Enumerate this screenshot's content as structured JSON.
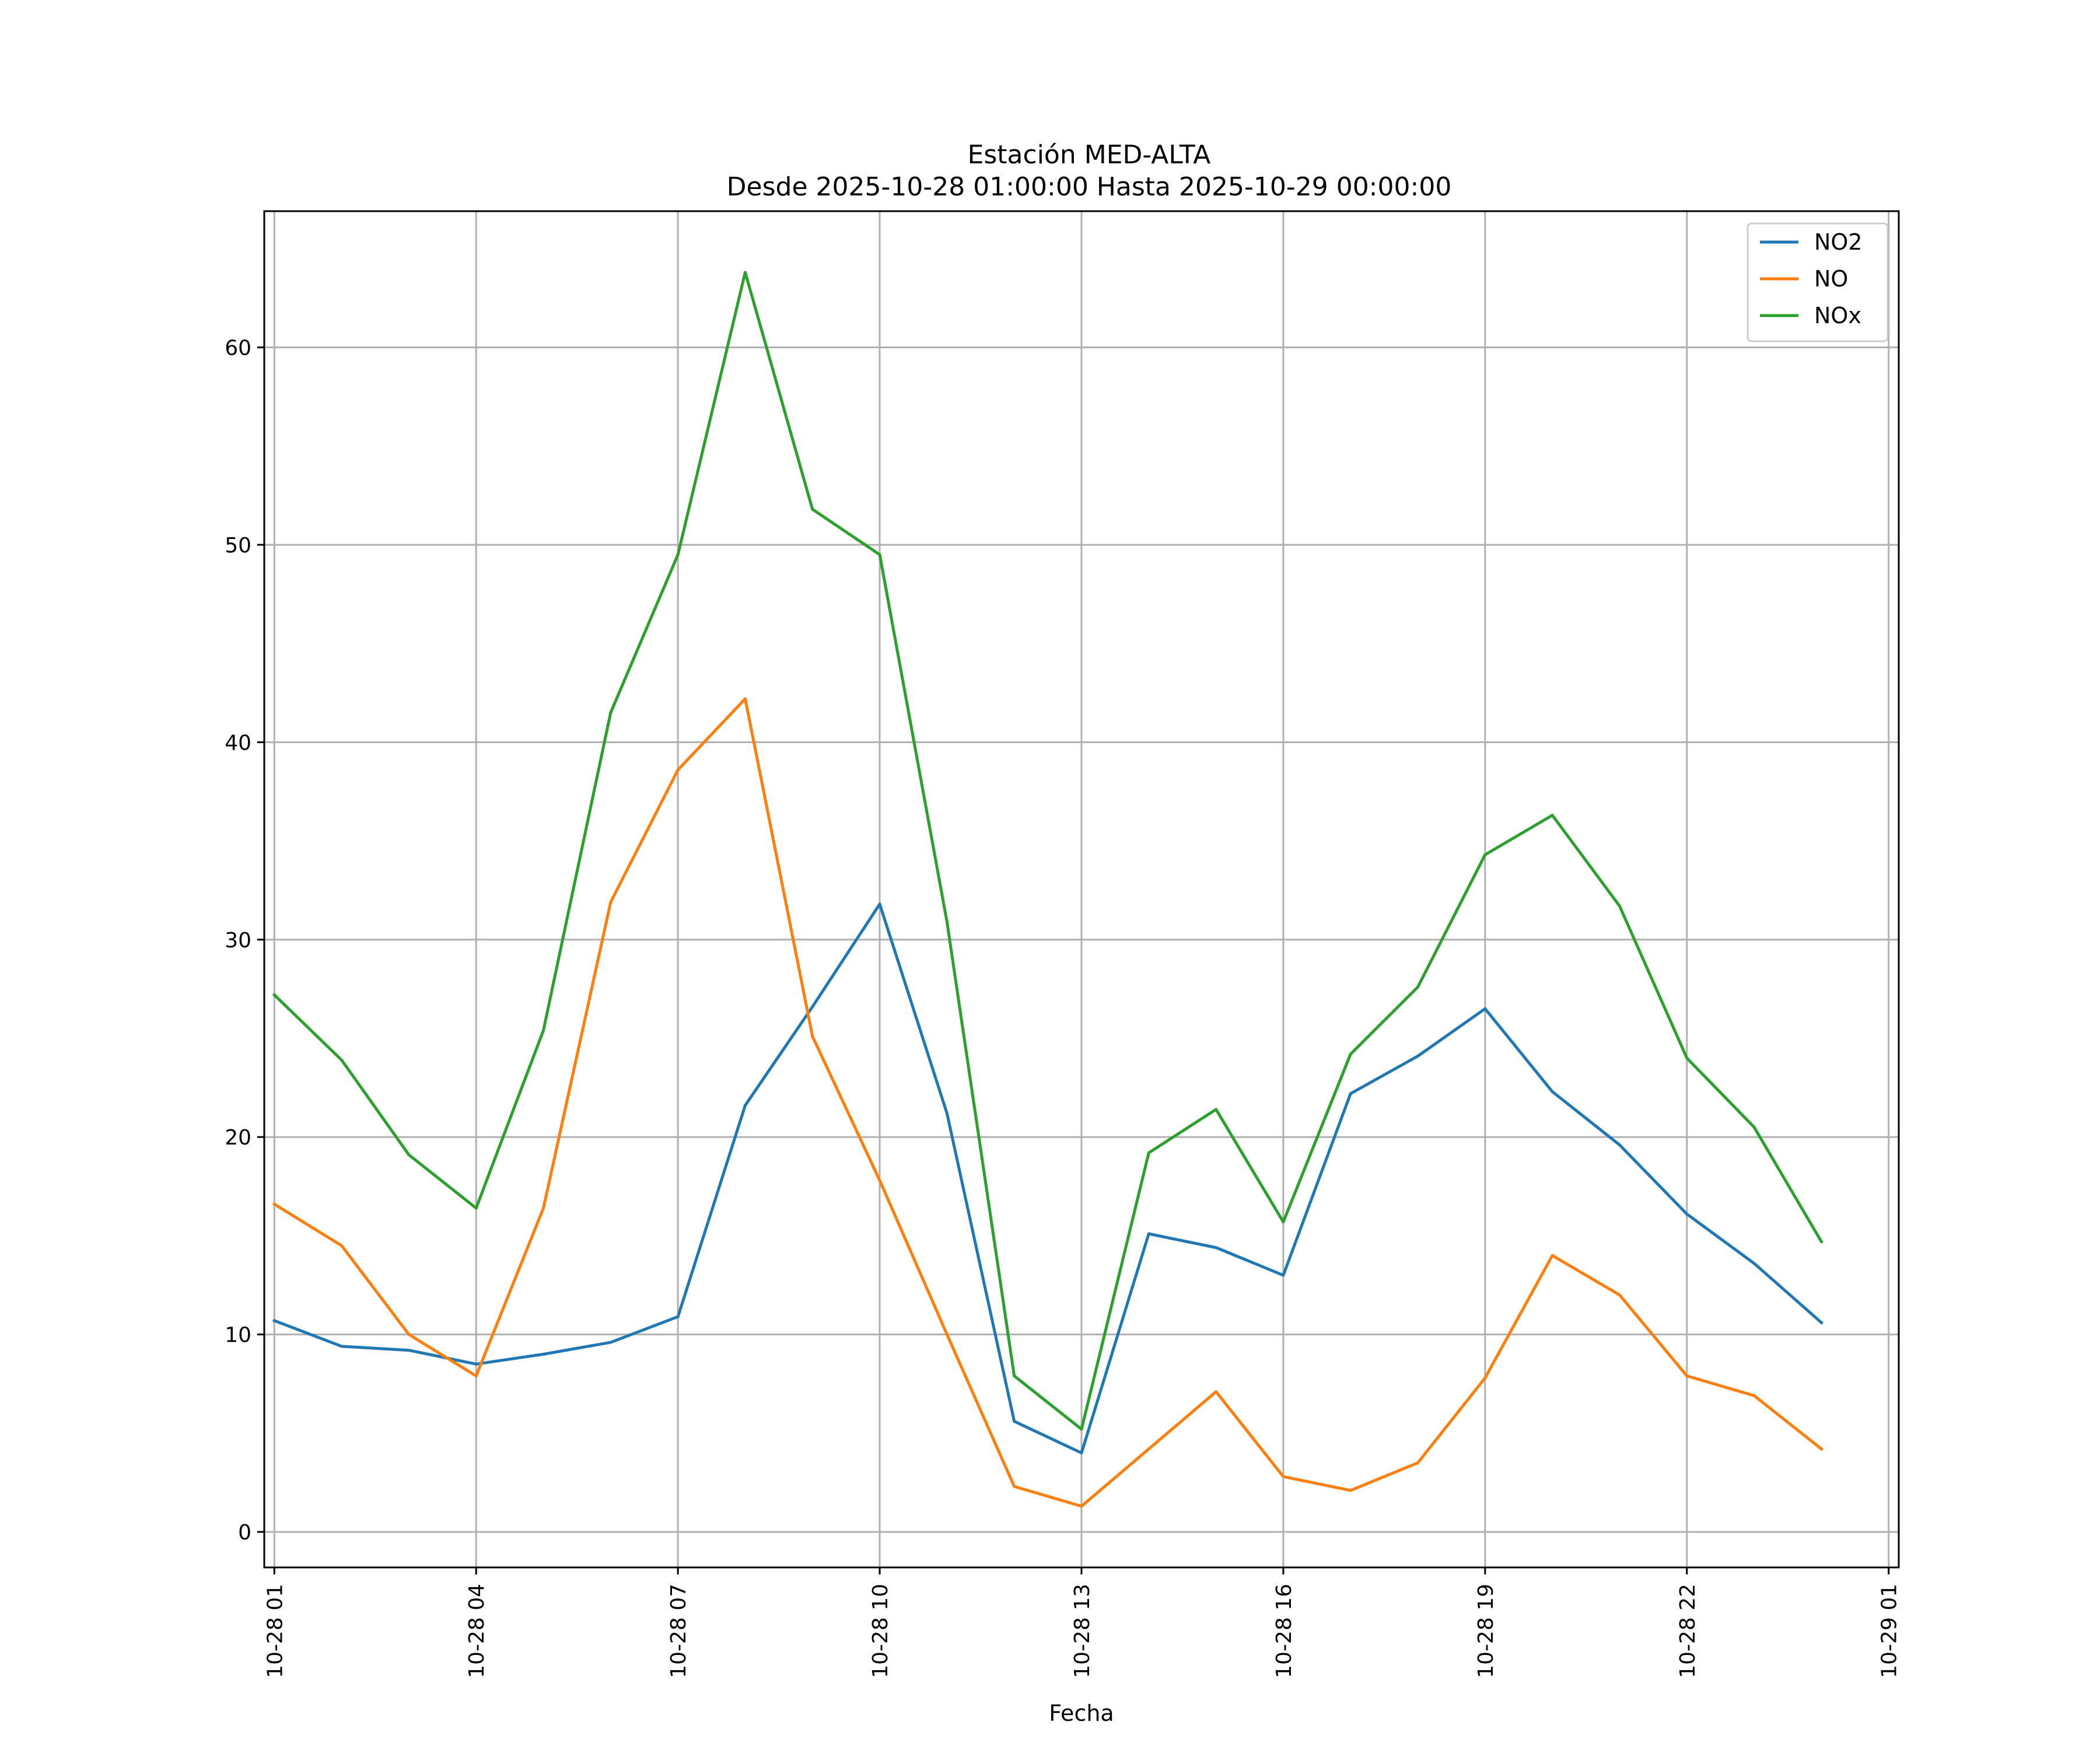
{
  "chart_data": {
    "type": "line",
    "title": [
      "Estación MED-ALTA",
      "Desde 2025-10-28 01:00:00 Hasta 2025-10-29 00:00:00"
    ],
    "xlabel": "Fecha",
    "ylabel": "",
    "grid": true,
    "legend_position": "upper-right",
    "x_hours": [
      1,
      2,
      3,
      4,
      5,
      6,
      7,
      8,
      9,
      10,
      11,
      12,
      13,
      14,
      15,
      16,
      17,
      18,
      19,
      20,
      21,
      22,
      23,
      24
    ],
    "xlim": [
      -0.15,
      24.15
    ],
    "ylim": [
      -1.8,
      66.9
    ],
    "x_ticks": [
      {
        "hour": 1,
        "label": "10-28 01"
      },
      {
        "hour": 4,
        "label": "10-28 04"
      },
      {
        "hour": 7,
        "label": "10-28 07"
      },
      {
        "hour": 10,
        "label": "10-28 10"
      },
      {
        "hour": 13,
        "label": "10-28 13"
      },
      {
        "hour": 16,
        "label": "10-28 16"
      },
      {
        "hour": 19,
        "label": "10-28 19"
      },
      {
        "hour": 22,
        "label": "10-28 22"
      },
      {
        "hour": 25,
        "label": "10-29 01"
      }
    ],
    "y_ticks": [
      {
        "value": 0,
        "label": "0"
      },
      {
        "value": 10,
        "label": "10"
      },
      {
        "value": 20,
        "label": "20"
      },
      {
        "value": 30,
        "label": "30"
      },
      {
        "value": 40,
        "label": "40"
      },
      {
        "value": 50,
        "label": "50"
      },
      {
        "value": 60,
        "label": "60"
      }
    ],
    "series": [
      {
        "name": "NO2",
        "color": "#1f77b4",
        "values": [
          10.7,
          9.4,
          9.2,
          8.5,
          9.0,
          9.6,
          10.9,
          21.6,
          26.6,
          31.8,
          21.2,
          5.6,
          4.0,
          15.1,
          14.4,
          13.0,
          22.2,
          24.1,
          26.5,
          22.3,
          19.6,
          16.1,
          13.6,
          10.6
        ]
      },
      {
        "name": "NO",
        "color": "#ff7f0e",
        "values": [
          16.6,
          14.5,
          10.0,
          7.9,
          16.4,
          31.9,
          38.6,
          42.2,
          25.1,
          17.8,
          10.0,
          2.3,
          1.3,
          4.2,
          7.1,
          2.8,
          2.1,
          3.5,
          7.8,
          14.0,
          12.0,
          7.9,
          6.9,
          4.2
        ]
      },
      {
        "name": "NOx",
        "color": "#2ca02c",
        "values": [
          27.2,
          23.9,
          19.1,
          16.4,
          25.4,
          41.5,
          49.5,
          63.8,
          51.8,
          49.5,
          30.9,
          7.9,
          5.2,
          19.2,
          21.4,
          15.7,
          24.2,
          27.6,
          34.3,
          36.3,
          31.7,
          24.0,
          20.5,
          14.7
        ]
      }
    ]
  }
}
